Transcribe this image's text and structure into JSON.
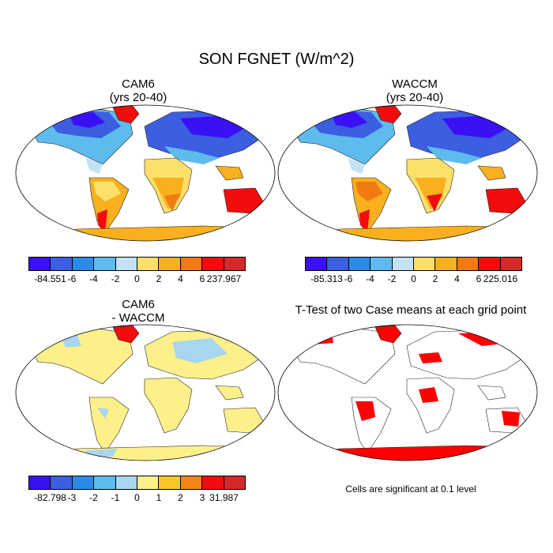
{
  "title": "SON FGNET (W/m^2)",
  "panels": {
    "cam6": {
      "title_line1": "CAM6",
      "title_line2": "(yrs 20-40)"
    },
    "waccm": {
      "title_line1": "WACCM",
      "title_line2": "(yrs 20-40)"
    },
    "diff": {
      "title_line1": "CAM6",
      "title_line2": "- WACCM"
    },
    "ttest": {
      "title": "T-Test of two Case means at each grid point",
      "note": "Cells are significant at 0.1 level",
      "significant_color": "#ff0000"
    }
  },
  "colorbars": {
    "cam6": {
      "colors": [
        "#3a10f5",
        "#3c5ee0",
        "#2a8ce8",
        "#5ebbed",
        "#c4e2f2",
        "#fde06a",
        "#f8b01e",
        "#f17a12",
        "#f20c0c",
        "#d42a2a"
      ],
      "labels": [
        "-84.551",
        "-6",
        "-4",
        "-2",
        "0",
        "2",
        "4",
        "6",
        "237.967"
      ]
    },
    "waccm": {
      "colors": [
        "#3a10f5",
        "#3c5ee0",
        "#2a8ce8",
        "#5ebbed",
        "#c4e2f2",
        "#fde06a",
        "#f8b01e",
        "#f17a12",
        "#f20c0c",
        "#d42a2a"
      ],
      "labels": [
        "-85.313",
        "-6",
        "-4",
        "-2",
        "0",
        "2",
        "4",
        "6",
        "225.016"
      ]
    },
    "diff": {
      "colors": [
        "#3a10f5",
        "#3c5ee0",
        "#2a8ce8",
        "#5ebbed",
        "#a8d6f0",
        "#fdf08a",
        "#f8c62a",
        "#f1851a",
        "#f20c0c",
        "#d42a2a"
      ],
      "labels": [
        "-82.798",
        "-3",
        "-2",
        "-1",
        "0",
        "1",
        "2",
        "3",
        "31.987"
      ]
    }
  }
}
